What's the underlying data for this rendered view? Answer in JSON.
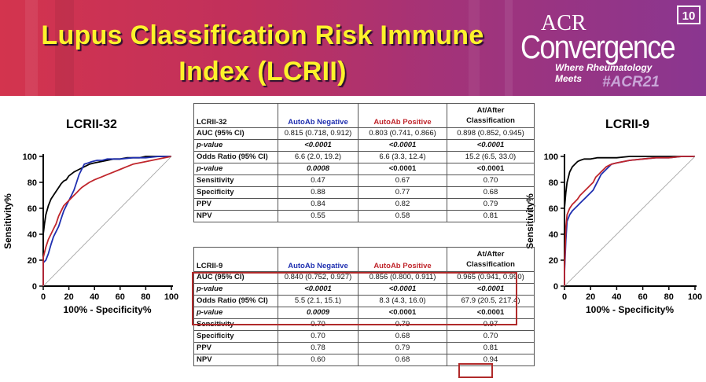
{
  "slide": {
    "title_line1": "Lupus Classification Risk Immune",
    "title_line2": "Index (LCRII)",
    "page_number": "10",
    "colors": {
      "title": "#fdf22b",
      "banner_left": "#d3344e",
      "banner_right": "#8a3690",
      "negative": "#1f2fb0",
      "positive": "#c0262c",
      "highlight_box": "#b02a2a"
    }
  },
  "logo": {
    "acr": "ACR",
    "name": "Convergence",
    "tagline": "Where Rheumatology Meets",
    "hashtag": "#ACR21"
  },
  "table1": {
    "label": "LCRII-32",
    "col_negative": "AutoAb Negative",
    "col_positive": "AutoAb Positive",
    "col_after_l1": "At/After",
    "col_after_l2": "Classification",
    "rows": [
      {
        "label": "AUC (95% CI)",
        "neg": "0.815 (0.718, 0.912)",
        "pos": "0.803 (0.741, 0.866)",
        "after": "0.898 (0.852, 0.945)"
      },
      {
        "label": "p-value",
        "neg": "<0.0001",
        "pos": "<0.0001",
        "after": "<0.0001"
      },
      {
        "label": "Odds Ratio (95% CI)",
        "neg": "6.6 (2.0, 19.2)",
        "pos": "6.6 (3.3, 12.4)",
        "after": "15.2 (6.5, 33.0)"
      },
      {
        "label": "p-value",
        "neg": "0.0008",
        "pos": "<0.0001",
        "after": "<0.0001"
      },
      {
        "label": "Sensitivity",
        "neg": "0.47",
        "pos": "0.67",
        "after": "0.70"
      },
      {
        "label": "Specificity",
        "neg": "0.88",
        "pos": "0.77",
        "after": "0.68"
      },
      {
        "label": "PPV",
        "neg": "0.84",
        "pos": "0.82",
        "after": "0.79"
      },
      {
        "label": "NPV",
        "neg": "0.55",
        "pos": "0.58",
        "after": "0.81"
      }
    ]
  },
  "table2": {
    "label": "LCRII-9",
    "col_negative": "AutoAb Negative",
    "col_positive": "AutoAb Positive",
    "col_after_l1": "At/After",
    "col_after_l2": "Classification",
    "rows": [
      {
        "label": "AUC (95% CI)",
        "neg": "0.840 (0.752, 0.927)",
        "pos": "0.856 (0.800, 0.911)",
        "after": "0.965 (0.941, 0.990)"
      },
      {
        "label": "p-value",
        "neg": "<0.0001",
        "pos": "<0.0001",
        "after": "<0.0001"
      },
      {
        "label": "Odds Ratio (95% CI)",
        "neg": "5.5 (2.1, 15.1)",
        "pos": "8.3 (4.3, 16.0)",
        "after": "67.9 (20.5, 217.4)"
      },
      {
        "label": "p-value",
        "neg": "0.0009",
        "pos": "<0.0001",
        "after": "<0.0001"
      },
      {
        "label": "Sensitivity",
        "neg": "0.70",
        "pos": "0.79",
        "after": "0.97"
      },
      {
        "label": "Specificity",
        "neg": "0.70",
        "pos": "0.68",
        "after": "0.70"
      },
      {
        "label": "PPV",
        "neg": "0.78",
        "pos": "0.79",
        "after": "0.81"
      },
      {
        "label": "NPV",
        "neg": "0.60",
        "pos": "0.68",
        "after": "0.94"
      }
    ]
  },
  "chart_data": [
    {
      "type": "line",
      "title": "LCRII-32",
      "xlabel": "100% - Specificity%",
      "ylabel": "Sensitivity%",
      "xlim": [
        0,
        100
      ],
      "ylim": [
        0,
        100
      ],
      "xticks": [
        0,
        20,
        40,
        60,
        80,
        100
      ],
      "yticks": [
        0,
        20,
        40,
        60,
        80,
        100
      ],
      "series": [
        {
          "color": "#000000",
          "x": [
            0,
            0,
            1,
            2,
            4,
            6,
            8,
            10,
            12,
            14,
            16,
            18,
            20,
            24,
            28,
            32,
            36,
            40,
            45,
            50,
            55,
            60,
            65,
            70,
            75,
            80,
            85,
            90,
            95,
            100
          ],
          "y": [
            0,
            40,
            48,
            55,
            62,
            67,
            70,
            73,
            76,
            79,
            81,
            82,
            85,
            88,
            90,
            92,
            94,
            95,
            96,
            97,
            98,
            98,
            99,
            99,
            99,
            100,
            100,
            100,
            100,
            100
          ]
        },
        {
          "color": "#1f2fb0",
          "x": [
            0,
            0,
            2,
            4,
            6,
            8,
            10,
            12,
            14,
            16,
            18,
            20,
            22,
            24,
            26,
            28,
            30,
            32,
            35,
            38,
            42,
            46,
            50,
            55,
            60,
            70,
            80,
            90,
            100
          ],
          "y": [
            0,
            18,
            20,
            25,
            32,
            38,
            42,
            46,
            52,
            58,
            62,
            66,
            70,
            74,
            80,
            86,
            90,
            94,
            95,
            96,
            97,
            97,
            98,
            98,
            98,
            99,
            99,
            100,
            100
          ]
        },
        {
          "color": "#c0262c",
          "x": [
            0,
            0,
            2,
            4,
            6,
            8,
            10,
            12,
            14,
            16,
            18,
            20,
            22,
            24,
            26,
            28,
            30,
            33,
            36,
            40,
            45,
            50,
            55,
            60,
            65,
            70,
            80,
            90,
            100
          ],
          "y": [
            0,
            22,
            30,
            36,
            40,
            44,
            48,
            54,
            58,
            62,
            64,
            66,
            68,
            70,
            72,
            74,
            76,
            78,
            80,
            82,
            84,
            86,
            88,
            90,
            92,
            94,
            96,
            98,
            100
          ]
        },
        {
          "color": "#9a9a9a",
          "x": [
            0,
            100
          ],
          "y": [
            0,
            100
          ]
        }
      ]
    },
    {
      "type": "line",
      "title": "LCRII-9",
      "xlabel": "100% - Specificity%",
      "ylabel": "Sensitivity%",
      "xlim": [
        0,
        100
      ],
      "ylim": [
        0,
        100
      ],
      "xticks": [
        0,
        20,
        40,
        60,
        80,
        100
      ],
      "yticks": [
        0,
        20,
        40,
        60,
        80,
        100
      ],
      "series": [
        {
          "color": "#000000",
          "x": [
            0,
            0,
            1,
            2,
            3,
            4,
            6,
            8,
            10,
            12,
            15,
            20,
            25,
            30,
            40,
            50,
            60,
            70,
            80,
            90,
            100
          ],
          "y": [
            0,
            60,
            72,
            80,
            84,
            88,
            92,
            94,
            96,
            97,
            98,
            98,
            99,
            99,
            99,
            100,
            100,
            100,
            100,
            100,
            100
          ]
        },
        {
          "color": "#1f2fb0",
          "x": [
            0,
            0,
            1,
            2,
            4,
            6,
            8,
            10,
            12,
            14,
            16,
            18,
            20,
            22,
            24,
            26,
            28,
            30,
            32,
            34,
            36,
            40,
            45,
            50,
            60,
            70,
            80,
            90,
            100
          ],
          "y": [
            0,
            10,
            35,
            50,
            55,
            58,
            60,
            62,
            64,
            66,
            68,
            70,
            72,
            74,
            78,
            82,
            86,
            88,
            90,
            92,
            94,
            95,
            96,
            97,
            98,
            99,
            99,
            100,
            100
          ]
        },
        {
          "color": "#c0262c",
          "x": [
            0,
            0,
            1,
            2,
            4,
            6,
            8,
            10,
            12,
            14,
            16,
            18,
            20,
            22,
            24,
            26,
            28,
            30,
            32,
            34,
            36,
            40,
            45,
            50,
            60,
            70,
            80,
            90,
            100
          ],
          "y": [
            0,
            14,
            45,
            55,
            60,
            63,
            65,
            67,
            70,
            72,
            74,
            76,
            78,
            80,
            84,
            86,
            88,
            90,
            92,
            93,
            94,
            95,
            96,
            97,
            98,
            99,
            99,
            100,
            100
          ]
        },
        {
          "color": "#9a9a9a",
          "x": [
            0,
            100
          ],
          "y": [
            0,
            100
          ]
        }
      ]
    }
  ]
}
